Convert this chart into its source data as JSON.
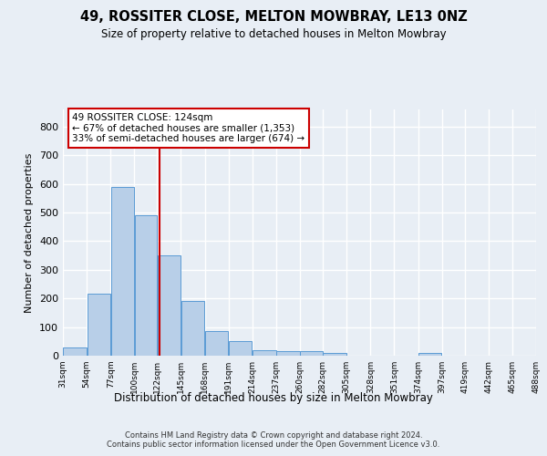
{
  "title": "49, ROSSITER CLOSE, MELTON MOWBRAY, LE13 0NZ",
  "subtitle": "Size of property relative to detached houses in Melton Mowbray",
  "xlabel": "Distribution of detached houses by size in Melton Mowbray",
  "ylabel": "Number of detached properties",
  "footer_line1": "Contains HM Land Registry data © Crown copyright and database right 2024.",
  "footer_line2": "Contains public sector information licensed under the Open Government Licence v3.0.",
  "bin_edges": [
    31,
    54,
    77,
    100,
    122,
    145,
    168,
    191,
    214,
    237,
    260,
    282,
    305,
    328,
    351,
    374,
    397,
    419,
    442,
    465,
    488
  ],
  "bar_heights": [
    30,
    218,
    588,
    490,
    350,
    190,
    85,
    52,
    18,
    15,
    15,
    8,
    0,
    0,
    0,
    8,
    0,
    0,
    0,
    0
  ],
  "bar_color": "#b8cfe8",
  "bar_edge_color": "#5b9bd5",
  "property_size": 124,
  "red_line_color": "#cc0000",
  "annotation_line1": "49 ROSSITER CLOSE: 124sqm",
  "annotation_line2": "← 67% of detached houses are smaller (1,353)",
  "annotation_line3": "33% of semi-detached houses are larger (674) →",
  "ylim_max": 860,
  "yticks": [
    0,
    100,
    200,
    300,
    400,
    500,
    600,
    700,
    800
  ],
  "x_tick_labels": [
    "31sqm",
    "54sqm",
    "77sqm",
    "100sqm",
    "122sqm",
    "145sqm",
    "168sqm",
    "191sqm",
    "214sqm",
    "237sqm",
    "260sqm",
    "282sqm",
    "305sqm",
    "328sqm",
    "351sqm",
    "374sqm",
    "397sqm",
    "419sqm",
    "442sqm",
    "465sqm",
    "488sqm"
  ],
  "bg_color": "#e8eef5",
  "grid_color": "#ffffff"
}
